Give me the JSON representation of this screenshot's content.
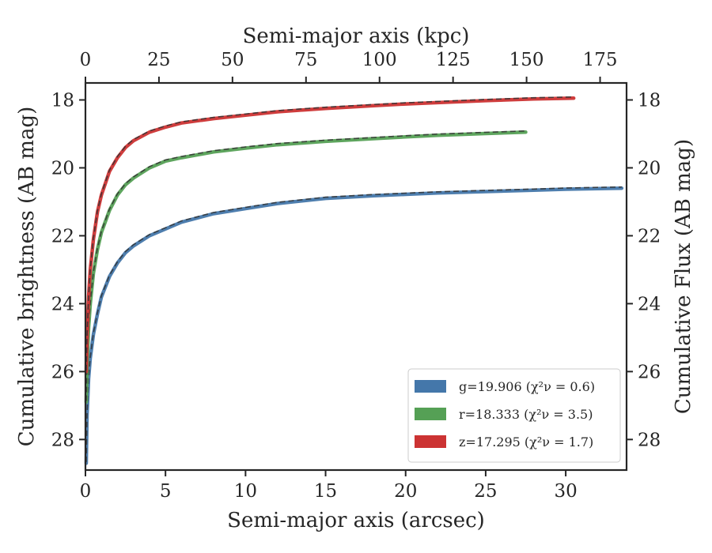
{
  "chart_data": {
    "type": "line",
    "xlabel": "Semi-major axis (arcsec)",
    "ylabel": "Cumulative brightness (AB mag)",
    "top_xlabel": "Semi-major axis (kpc)",
    "right_ylabel": "Cumulative Flux (AB mag)",
    "xlim": [
      0,
      33.8
    ],
    "ylim": [
      28.9,
      17.5
    ],
    "top_xlim": [
      0,
      184
    ],
    "y_inverted": true,
    "xticks": [
      "0",
      "5",
      "10",
      "15",
      "20",
      "25",
      "30"
    ],
    "top_xticks": [
      "0",
      "25",
      "50",
      "75",
      "100",
      "125",
      "150",
      "175"
    ],
    "yticks": [
      "18",
      "20",
      "22",
      "24",
      "26",
      "28"
    ],
    "legend_position": "lower-right",
    "grid": false,
    "series": [
      {
        "name": "g=19.906",
        "chi2_label": "χ²ν = 0.6",
        "color": "#4477aa",
        "x": [
          0.05,
          0.1,
          0.2,
          0.3,
          0.5,
          0.75,
          1.0,
          1.5,
          2.0,
          2.5,
          3.0,
          4.0,
          5.0,
          6.0,
          8.0,
          10.0,
          12.0,
          15.0,
          18.0,
          20.0,
          22.0,
          25.0,
          28.0,
          30.0,
          32.0,
          33.5
        ],
        "y": [
          28.7,
          27.3,
          26.2,
          25.6,
          24.9,
          24.3,
          23.8,
          23.2,
          22.8,
          22.5,
          22.3,
          22.0,
          21.8,
          21.6,
          21.35,
          21.2,
          21.05,
          20.9,
          20.82,
          20.78,
          20.74,
          20.7,
          20.66,
          20.63,
          20.61,
          20.6
        ]
      },
      {
        "name": "r=18.333",
        "chi2_label": "χ²ν = 3.5",
        "color": "#55a055",
        "x": [
          0.05,
          0.1,
          0.2,
          0.3,
          0.5,
          0.75,
          1.0,
          1.5,
          2.0,
          2.5,
          3.0,
          4.0,
          5.0,
          6.0,
          8.0,
          10.0,
          12.0,
          15.0,
          18.0,
          20.0,
          22.0,
          25.0,
          27.5
        ],
        "y": [
          26.9,
          25.8,
          24.7,
          24.0,
          23.1,
          22.4,
          21.9,
          21.25,
          20.8,
          20.5,
          20.3,
          20.0,
          19.8,
          19.7,
          19.53,
          19.42,
          19.32,
          19.22,
          19.14,
          19.09,
          19.04,
          18.99,
          18.95
        ]
      },
      {
        "name": "z=17.295",
        "chi2_label": "χ²ν = 1.7",
        "color": "#cc3333",
        "x": [
          0.05,
          0.1,
          0.2,
          0.3,
          0.5,
          0.75,
          1.0,
          1.5,
          2.0,
          2.5,
          3.0,
          4.0,
          5.0,
          6.0,
          8.0,
          10.0,
          12.0,
          15.0,
          18.0,
          20.0,
          22.0,
          25.0,
          28.0,
          30.5
        ],
        "y": [
          26.0,
          25.0,
          23.8,
          23.0,
          22.1,
          21.3,
          20.8,
          20.1,
          19.7,
          19.4,
          19.2,
          18.95,
          18.8,
          18.68,
          18.55,
          18.45,
          18.35,
          18.25,
          18.17,
          18.12,
          18.08,
          18.02,
          17.97,
          17.95
        ]
      }
    ]
  }
}
